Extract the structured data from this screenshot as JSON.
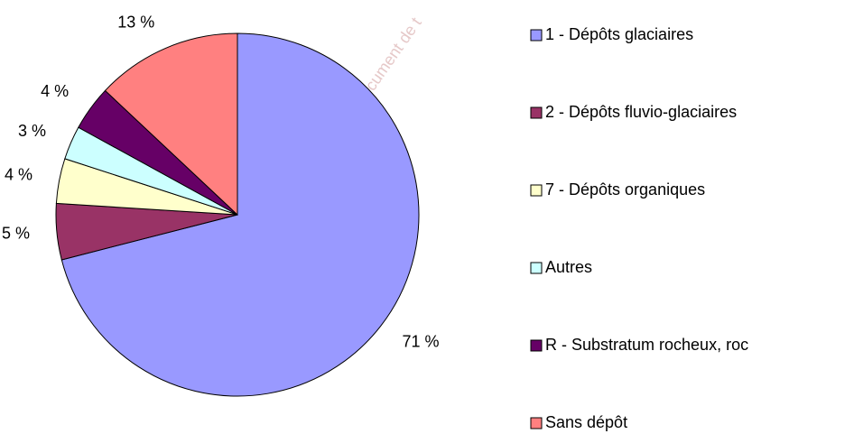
{
  "chart_data": {
    "type": "pie",
    "categories": [
      "1 - Dépôts glaciaires",
      "2 - Dépôts fluvio-glaciaires",
      "7 - Dépôts organiques",
      "Autres",
      "R - Substratum rocheux, roc",
      "Sans dépôt"
    ],
    "values": [
      71,
      5,
      4,
      3,
      4,
      13
    ],
    "value_labels": [
      "71 %",
      "5 %",
      "4 %",
      "3 %",
      "4 %",
      "13 %"
    ],
    "colors": [
      "#9999ff",
      "#993366",
      "#ffffcc",
      "#ccffff",
      "#660066",
      "#ff8080"
    ],
    "legend": "right",
    "watermark": "Document de t"
  }
}
